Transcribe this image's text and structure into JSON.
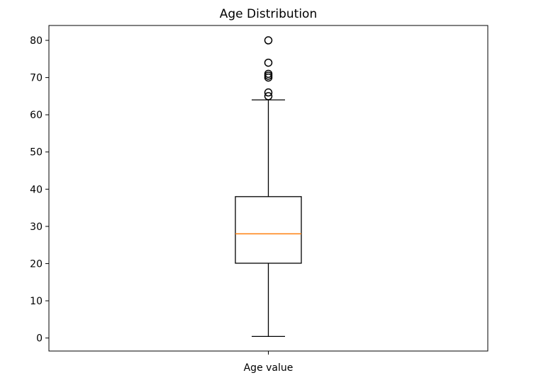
{
  "chart_data": {
    "type": "box",
    "title": "Age Distribution",
    "xlabel": "",
    "ylabel": "",
    "categories": [
      "Age value"
    ],
    "ylim": [
      -3.5,
      84
    ],
    "yticks": [
      0,
      10,
      20,
      30,
      40,
      50,
      60,
      70,
      80
    ],
    "grid": false,
    "boxes": [
      {
        "name": "Age value",
        "whisker_low": 0.42,
        "q1": 20.1,
        "median": 28,
        "q3": 38,
        "whisker_high": 64,
        "outliers": [
          65,
          66,
          70,
          70.5,
          71,
          74,
          80
        ]
      }
    ],
    "colors": {
      "box": "#000000",
      "median": "#ff7f0e",
      "outlier": "#000000"
    }
  }
}
